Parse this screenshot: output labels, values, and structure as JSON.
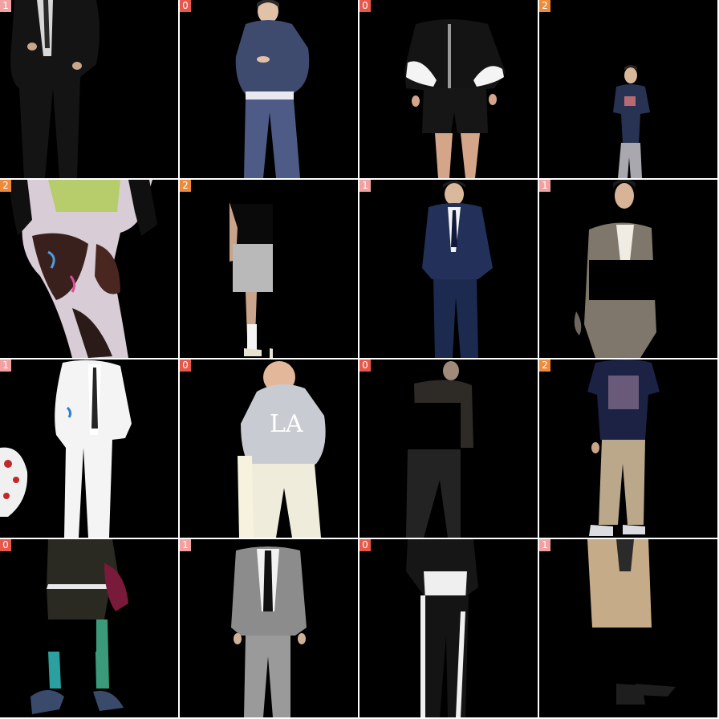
{
  "colors": {
    "badge_0": "#e8584a",
    "badge_1": "#f2a0a0",
    "badge_2": "#ee8a3a",
    "background": "#000000",
    "separator": "#ffffff"
  },
  "tiles": [
    {
      "label": "1",
      "subject": "black suit"
    },
    {
      "label": "0",
      "subject": "navy hoodie and sweatpants"
    },
    {
      "label": "0",
      "subject": "black and white track jacket, black shorts"
    },
    {
      "label": "2",
      "subject": "small person, navy graphic tee, grey pants"
    },
    {
      "label": "2",
      "subject": "psychedelic color-inverted pants"
    },
    {
      "label": "2",
      "subject": "grey shorts, white socks, sneakers"
    },
    {
      "label": "1",
      "subject": "navy suit with tie"
    },
    {
      "label": "1",
      "subject": "grey blazer and trousers"
    },
    {
      "label": "1",
      "subject": "inverted white suit"
    },
    {
      "label": "0",
      "subject": "inverted LA hoodie"
    },
    {
      "label": "0",
      "subject": "dark hoodie and wide pants"
    },
    {
      "label": "2",
      "subject": "navy graphic tee, beige trousers"
    },
    {
      "label": "0",
      "subject": "psychedelic shorts and sneakers"
    },
    {
      "label": "1",
      "subject": "grey suit with black tie"
    },
    {
      "label": "0",
      "subject": "black track suit with white stripes"
    },
    {
      "label": "1",
      "subject": "beige suit, loafers"
    }
  ]
}
